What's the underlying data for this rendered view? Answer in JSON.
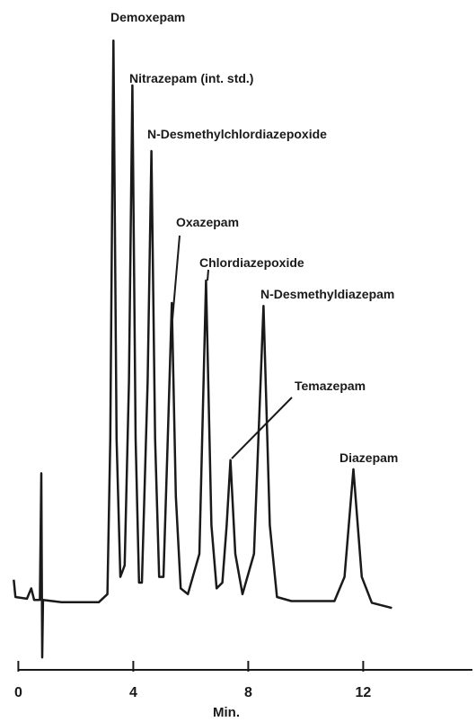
{
  "chart_data": {
    "type": "line",
    "x_label": "Min.",
    "x": [
      -0.16,
      -0.1,
      0.3,
      0.45,
      0.55,
      0.75,
      0.8,
      0.83,
      0.86,
      1.5,
      2.8,
      3.1,
      3.2,
      3.31,
      3.42,
      3.55,
      3.7,
      3.85,
      3.97,
      4.08,
      4.2,
      4.3,
      4.5,
      4.63,
      4.76,
      4.9,
      5.05,
      5.2,
      5.34,
      5.48,
      5.65,
      5.9,
      6.3,
      6.53,
      6.72,
      6.9,
      7.1,
      7.25,
      7.38,
      7.55,
      7.8,
      8.2,
      8.53,
      8.75,
      9.0,
      9.5,
      11.0,
      11.35,
      11.66,
      11.95,
      12.3,
      13.0
    ],
    "values": [
      5.5,
      2.5,
      2.2,
      4,
      2,
      2,
      24,
      -8,
      2,
      1.6,
      1.6,
      3,
      30,
      99.2,
      30,
      6,
      8,
      40,
      91.4,
      30,
      5,
      5,
      40,
      80,
      30,
      6,
      6,
      30,
      53.6,
      20,
      4,
      3,
      10,
      57.5,
      15,
      4,
      5,
      15,
      26.3,
      10,
      3,
      10,
      53.1,
      15,
      2.5,
      1.8,
      1.8,
      6,
      24.7,
      6,
      1.5,
      0.6
    ],
    "color": "#1a1a1a",
    "xlim": [
      -0.2,
      15.8
    ],
    "xticks": [
      0,
      4,
      8,
      12
    ],
    "ylim": [
      -10,
      100
    ],
    "annotations": [
      {
        "text": "Demoxepam"
      },
      {
        "text": "Nitrazepam (int. std.)"
      },
      {
        "text": "N-Desmethylchlordiazepoxide"
      },
      {
        "text": "Oxazepam"
      },
      {
        "text": "Chlordiazepoxide"
      },
      {
        "text": "N-Desmethyldiazepam"
      },
      {
        "text": "Temazepam"
      },
      {
        "text": "Diazepam"
      }
    ]
  }
}
